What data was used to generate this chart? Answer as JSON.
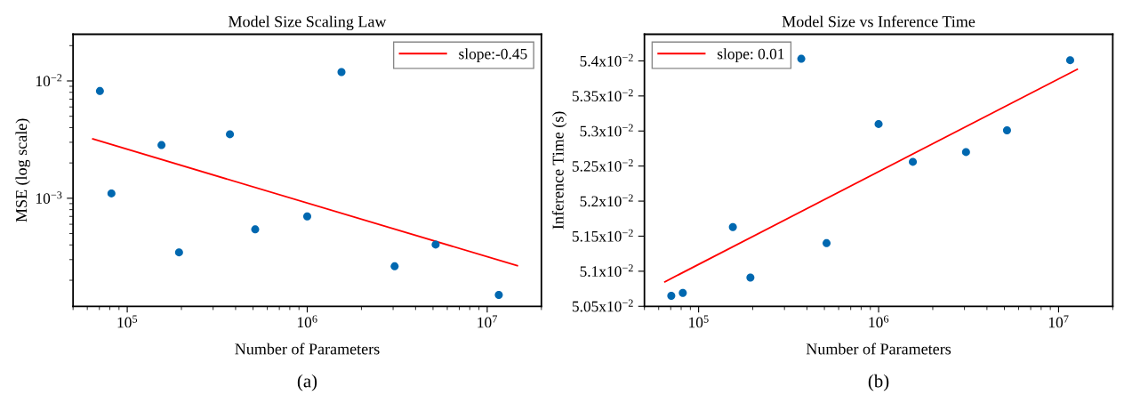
{
  "chart_data": [
    {
      "type": "scatter",
      "title": "Model Size Scaling Law",
      "xlabel": "Number of Parameters",
      "ylabel": "MSE (log scale)",
      "annotations": [
        "(a)"
      ],
      "log": "xy",
      "grid": false,
      "legend": "top right",
      "marker": "circle",
      "xlim": [
        50000,
        20000000
      ],
      "ylim": [
        0.00012,
        0.025
      ],
      "xticks": [
        {
          "value": 100000,
          "label": "10$^{5}$"
        },
        {
          "value": 1000000,
          "label": "10$^{6}$"
        },
        {
          "value": 10000000,
          "label": "10$^{7}$"
        }
      ],
      "yticks": [
        {
          "value": 0.001,
          "label": "10$^{−3}$"
        },
        {
          "value": 0.01,
          "label": "10$^{−2}$"
        }
      ],
      "series": [
        {
          "color": "#0068b0",
          "x": [
            70500,
            81700,
            155000,
            194000,
            372000,
            514000,
            1000000,
            1550000,
            3060000,
            5170000,
            11600000
          ],
          "values": [
            0.0082,
            0.0011,
            0.00284,
            0.000346,
            0.00351,
            0.000543,
            0.0007,
            0.0119,
            0.000263,
            0.000403,
            0.00015
          ]
        },
        {
          "type": "line",
          "name": "slope:-0.45",
          "color": "#ff0000",
          "marker": "none",
          "line_style": "solid",
          "x": [
            64400,
            14700000
          ],
          "values": [
            0.0032,
            0.000266
          ]
        }
      ]
    },
    {
      "type": "scatter",
      "title": "Model Size vs Inference Time",
      "xlabel": "Number of Parameters",
      "ylabel": "Inference Time (s)",
      "annotations": [
        "(b)"
      ],
      "log": "x",
      "grid": false,
      "legend": "top left",
      "marker": "circle",
      "xlim": [
        50000,
        20000000
      ],
      "ylim": [
        0.0505,
        0.05438
      ],
      "xticks": [
        {
          "value": 100000,
          "label": "10$^{5}$"
        },
        {
          "value": 1000000,
          "label": "10$^{6}$"
        },
        {
          "value": 10000000,
          "label": "10$^{7}$"
        }
      ],
      "yticks": [
        {
          "value": 0.0505,
          "label": "5.05x10$^{−2}$"
        },
        {
          "value": 0.051,
          "label": "5.1x10$^{−2}$"
        },
        {
          "value": 0.0515,
          "label": "5.15x10$^{−2}$"
        },
        {
          "value": 0.052,
          "label": "5.2x10$^{−2}$"
        },
        {
          "value": 0.0525,
          "label": "5.25x10$^{−2}$"
        },
        {
          "value": 0.053,
          "label": "5.3x10$^{−2}$"
        },
        {
          "value": 0.0535,
          "label": "5.35x10$^{−2}$"
        },
        {
          "value": 0.054,
          "label": "5.4x10$^{−2}$"
        }
      ],
      "series": [
        {
          "color": "#0068b0",
          "x": [
            70500,
            81700,
            155000,
            194000,
            372000,
            514000,
            1000000,
            1550000,
            3060000,
            5170000,
            11600000
          ],
          "values": [
            0.05065,
            0.05069,
            0.05163,
            0.05091,
            0.05403,
            0.0514,
            0.0531,
            0.05256,
            0.0527,
            0.05301,
            0.05401
          ]
        },
        {
          "type": "line",
          "name": "slope: 0.01",
          "color": "#ff0000",
          "marker": "none",
          "line_style": "solid",
          "x": [
            65000,
            12700000
          ],
          "values": [
            0.05085,
            0.05388
          ]
        }
      ]
    }
  ]
}
